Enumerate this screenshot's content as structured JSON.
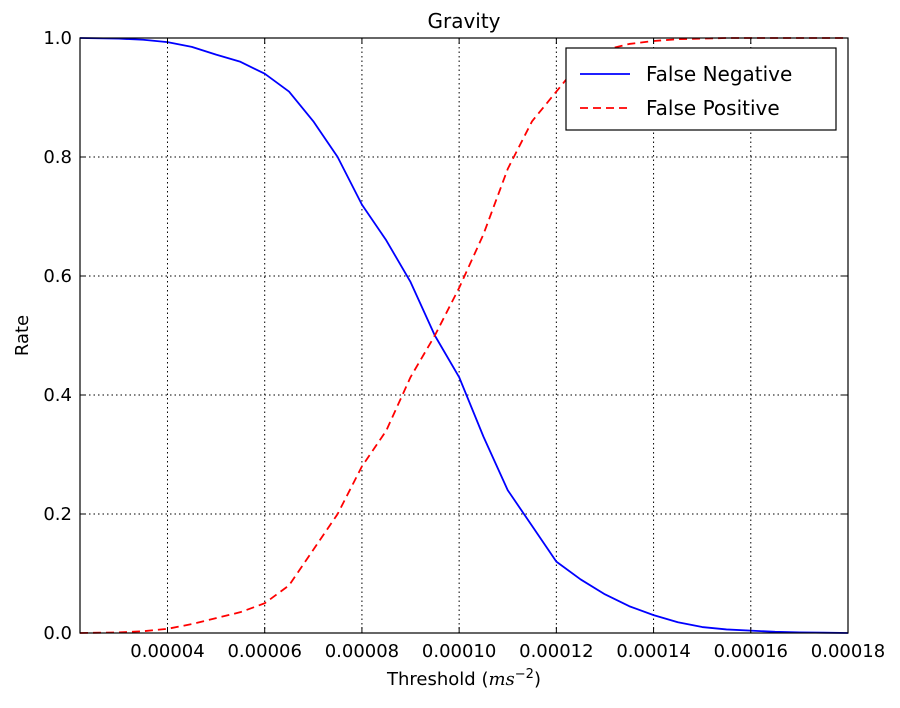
{
  "chart_data": {
    "type": "line",
    "title": "Gravity",
    "xlabel": "Threshold (ms⁻²)",
    "xlabel_text": "Threshold (",
    "xlabel_unit_base": "ms",
    "xlabel_unit_exp": "−2",
    "xlabel_close": ")",
    "ylabel": "Rate",
    "xlim": [
      2.2e-05,
      0.00018
    ],
    "ylim": [
      0.0,
      1.0
    ],
    "grid": true,
    "legend_position": "top-right",
    "x_ticks": [
      {
        "value": 4e-05,
        "label": "0.00004"
      },
      {
        "value": 6e-05,
        "label": "0.00006"
      },
      {
        "value": 8e-05,
        "label": "0.00008"
      },
      {
        "value": 0.0001,
        "label": "0.00010"
      },
      {
        "value": 0.00012,
        "label": "0.00012"
      },
      {
        "value": 0.00014,
        "label": "0.00014"
      },
      {
        "value": 0.00016,
        "label": "0.00016"
      },
      {
        "value": 0.00018,
        "label": "0.00018"
      }
    ],
    "y_ticks": [
      {
        "value": 0.0,
        "label": "0.0"
      },
      {
        "value": 0.2,
        "label": "0.2"
      },
      {
        "value": 0.4,
        "label": "0.4"
      },
      {
        "value": 0.6,
        "label": "0.6"
      },
      {
        "value": 0.8,
        "label": "0.8"
      },
      {
        "value": 1.0,
        "label": "1.0"
      }
    ],
    "series": [
      {
        "name": "False Negative",
        "color": "#0000ff",
        "style": "solid",
        "x": [
          2.2e-05,
          3e-05,
          3.5e-05,
          4e-05,
          4.5e-05,
          5e-05,
          5.5e-05,
          6e-05,
          6.5e-05,
          7e-05,
          7.5e-05,
          8e-05,
          8.5e-05,
          9e-05,
          9.5e-05,
          0.0001,
          0.000105,
          0.00011,
          0.000115,
          0.00012,
          0.000125,
          0.00013,
          0.000135,
          0.00014,
          0.000145,
          0.00015,
          0.000155,
          0.00016,
          0.000165,
          0.00017,
          0.000175,
          0.00018
        ],
        "y": [
          1.0,
          0.999,
          0.997,
          0.993,
          0.985,
          0.972,
          0.96,
          0.94,
          0.91,
          0.86,
          0.8,
          0.72,
          0.66,
          0.59,
          0.5,
          0.43,
          0.33,
          0.24,
          0.18,
          0.12,
          0.09,
          0.065,
          0.045,
          0.03,
          0.018,
          0.01,
          0.006,
          0.004,
          0.002,
          0.001,
          0.0005,
          0.0
        ]
      },
      {
        "name": "False Positive",
        "color": "#ff0000",
        "style": "dashed",
        "x": [
          2.2e-05,
          3e-05,
          3.5e-05,
          4e-05,
          4.5e-05,
          5e-05,
          5.5e-05,
          6e-05,
          6.5e-05,
          7e-05,
          7.5e-05,
          8e-05,
          8.5e-05,
          9e-05,
          9.5e-05,
          0.0001,
          0.000105,
          0.00011,
          0.000115,
          0.00012,
          0.000125,
          0.00013,
          0.000135,
          0.00014,
          0.000145,
          0.00015,
          0.000155,
          0.00016,
          0.000165,
          0.00017,
          0.000175,
          0.00018
        ],
        "y": [
          0.0,
          0.001,
          0.003,
          0.007,
          0.015,
          0.025,
          0.035,
          0.05,
          0.08,
          0.14,
          0.2,
          0.28,
          0.34,
          0.43,
          0.5,
          0.58,
          0.67,
          0.78,
          0.86,
          0.91,
          0.96,
          0.98,
          0.99,
          0.995,
          0.998,
          0.999,
          1.0,
          1.0,
          1.0,
          1.0,
          1.0,
          1.0
        ]
      }
    ]
  }
}
